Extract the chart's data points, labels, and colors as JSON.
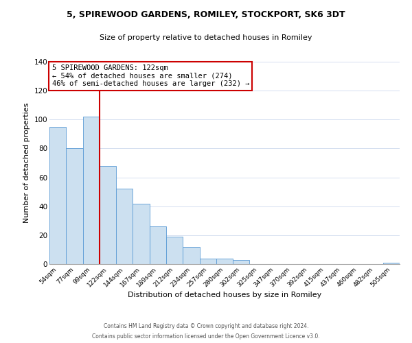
{
  "title": "5, SPIREWOOD GARDENS, ROMILEY, STOCKPORT, SK6 3DT",
  "subtitle": "Size of property relative to detached houses in Romiley",
  "xlabel": "Distribution of detached houses by size in Romiley",
  "ylabel": "Number of detached properties",
  "bar_labels": [
    "54sqm",
    "77sqm",
    "99sqm",
    "122sqm",
    "144sqm",
    "167sqm",
    "189sqm",
    "212sqm",
    "234sqm",
    "257sqm",
    "280sqm",
    "302sqm",
    "325sqm",
    "347sqm",
    "370sqm",
    "392sqm",
    "415sqm",
    "437sqm",
    "460sqm",
    "482sqm",
    "505sqm"
  ],
  "bar_heights": [
    95,
    80,
    102,
    68,
    52,
    42,
    26,
    19,
    12,
    4,
    4,
    3,
    0,
    0,
    0,
    0,
    0,
    0,
    0,
    0,
    1
  ],
  "bar_color": "#cce0f0",
  "bar_edge_color": "#5b9bd5",
  "vline_x_index": 3,
  "vline_color": "#cc0000",
  "annotation_text": "5 SPIREWOOD GARDENS: 122sqm\n← 54% of detached houses are smaller (274)\n46% of semi-detached houses are larger (232) →",
  "annotation_box_edge": "#cc0000",
  "ylim": [
    0,
    140
  ],
  "yticks": [
    0,
    20,
    40,
    60,
    80,
    100,
    120,
    140
  ],
  "footer_line1": "Contains HM Land Registry data © Crown copyright and database right 2024.",
  "footer_line2": "Contains public sector information licensed under the Open Government Licence v3.0.",
  "background_color": "#ffffff",
  "grid_color": "#d4dff0"
}
